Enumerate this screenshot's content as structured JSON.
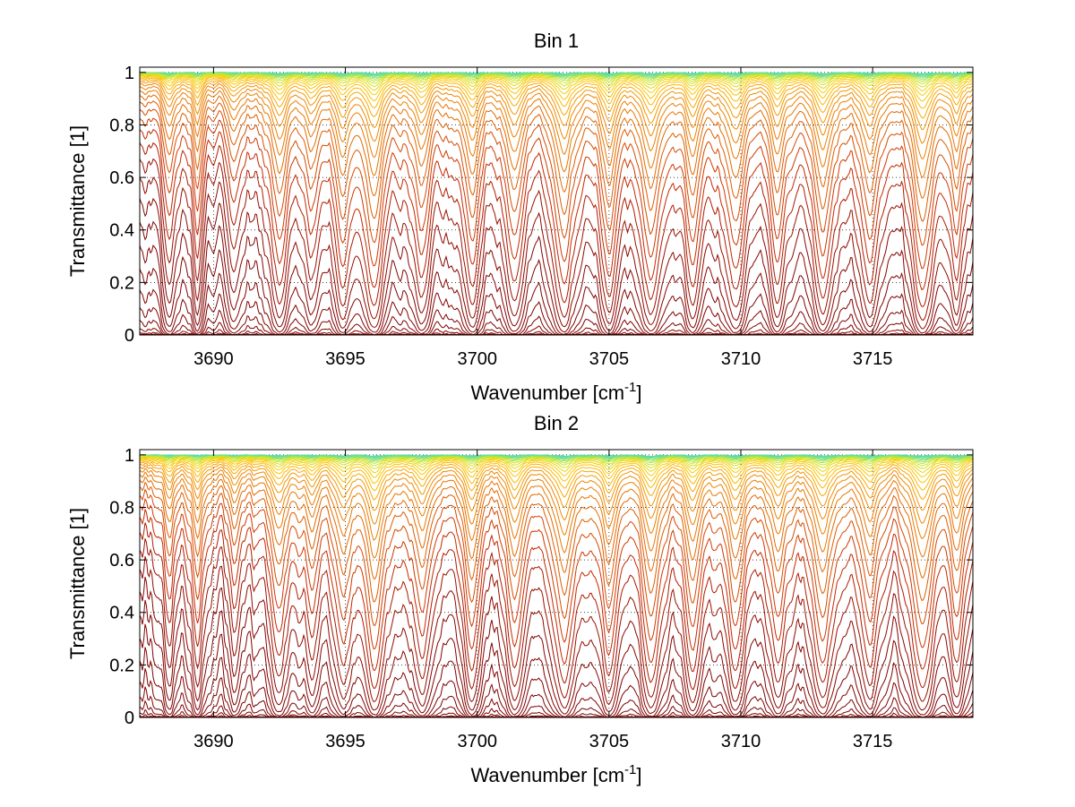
{
  "chart_data": [
    {
      "type": "line",
      "title": "Bin 1",
      "xlabel": "Wavenumber [cm-1]",
      "xlabel_base": "Wavenumber [cm",
      "xlabel_sup": "-1",
      "xlabel_close": "]",
      "ylabel": "Transmittance [1]",
      "xlim": [
        3687.2,
        3718.8
      ],
      "ylim": [
        0,
        1.02
      ],
      "xticks": [
        3690,
        3695,
        3700,
        3705,
        3710,
        3715
      ],
      "xtick_labels": [
        "3690",
        "3695",
        "3700",
        "3705",
        "3710",
        "3715"
      ],
      "yticks": [
        0,
        0.2,
        0.4,
        0.6,
        0.8,
        1
      ],
      "ytick_labels": [
        "0",
        "0.2",
        "0.4",
        "0.6",
        "0.8",
        "1"
      ],
      "grid": true,
      "grid_style": "dotted",
      "line_count": 48,
      "colormap": "autumn-to-jet (dark red at low transmittance, orange mid, yellow/green/cyan near 1)",
      "absorption_line_centers": [
        3688.3,
        3689.4,
        3690.8,
        3692.5,
        3693.7,
        3694.9,
        3696.1,
        3697.9,
        3699.8,
        3701.4,
        3703.3,
        3705.0,
        3706.6,
        3708.2,
        3709.8,
        3711.4,
        3713.1,
        3714.9,
        3716.9,
        3718.2
      ],
      "representative_series": [
        {
          "x": [
            3687.2,
            3690,
            3695,
            3696.1,
            3700,
            3703.3,
            3705,
            3710,
            3713.1,
            3716.9,
            3718.8
          ],
          "y": [
            0.99,
            0.99,
            0.99,
            0.96,
            0.99,
            0.97,
            0.98,
            0.99,
            0.98,
            0.96,
            0.99
          ]
        },
        {
          "x": [
            3687.2,
            3690,
            3695,
            3696.1,
            3700,
            3703.3,
            3705,
            3710,
            3713.1,
            3716.9,
            3718.8
          ],
          "y": [
            0.85,
            0.82,
            0.8,
            0.25,
            0.78,
            0.22,
            0.3,
            0.8,
            0.2,
            0.2,
            0.85
          ]
        },
        {
          "x": [
            3687.2,
            3690,
            3695,
            3696.1,
            3700,
            3703.3,
            3705,
            3710,
            3713.1,
            3716.9,
            3718.8
          ],
          "y": [
            0.4,
            0.35,
            0.45,
            0.18,
            0.5,
            0.18,
            0.2,
            0.5,
            0.18,
            0.18,
            0.55
          ]
        },
        {
          "x": [
            3687.2,
            3690,
            3695,
            3700,
            3705,
            3710,
            3715,
            3718.8
          ],
          "y": [
            0.17,
            0.15,
            0.15,
            0.14,
            0.14,
            0.15,
            0.13,
            0.14
          ]
        },
        {
          "x": [
            3687.2,
            3690,
            3695,
            3700,
            3705,
            3710,
            3715,
            3718.8
          ],
          "y": [
            0.01,
            0.01,
            0.01,
            0.01,
            0.01,
            0.01,
            0.01,
            0.01
          ]
        }
      ]
    },
    {
      "type": "line",
      "title": "Bin 2",
      "xlabel": "Wavenumber [cm-1]",
      "xlabel_base": "Wavenumber [cm",
      "xlabel_sup": "-1",
      "xlabel_close": "]",
      "ylabel": "Transmittance [1]",
      "xlim": [
        3687.2,
        3718.8
      ],
      "ylim": [
        0,
        1.02
      ],
      "xticks": [
        3690,
        3695,
        3700,
        3705,
        3710,
        3715
      ],
      "xtick_labels": [
        "3690",
        "3695",
        "3700",
        "3705",
        "3710",
        "3715"
      ],
      "yticks": [
        0,
        0.2,
        0.4,
        0.6,
        0.8,
        1
      ],
      "ytick_labels": [
        "0",
        "0.2",
        "0.4",
        "0.6",
        "0.8",
        "1"
      ],
      "grid": true,
      "grid_style": "dotted",
      "line_count": 48,
      "colormap": "autumn-to-jet (dark red at low transmittance, orange mid, yellow/green/cyan near 1)",
      "absorption_line_centers": [
        3688.3,
        3689.4,
        3690.8,
        3692.5,
        3693.7,
        3694.9,
        3696.1,
        3697.9,
        3699.8,
        3701.4,
        3703.3,
        3705.0,
        3706.6,
        3708.2,
        3709.8,
        3711.4,
        3713.1,
        3714.9,
        3716.9,
        3718.2
      ],
      "representative_series": [
        {
          "x": [
            3687.2,
            3690,
            3695,
            3696.1,
            3700,
            3703.3,
            3705,
            3710,
            3713.1,
            3716.9,
            3718.8
          ],
          "y": [
            0.99,
            0.99,
            0.99,
            0.96,
            0.99,
            0.97,
            0.98,
            0.99,
            0.98,
            0.96,
            0.99
          ]
        },
        {
          "x": [
            3687.2,
            3690,
            3695,
            3696.1,
            3700,
            3703.3,
            3705,
            3710,
            3713.1,
            3716.9,
            3718.8
          ],
          "y": [
            0.85,
            0.8,
            0.78,
            0.3,
            0.75,
            0.25,
            0.32,
            0.78,
            0.25,
            0.22,
            0.85
          ]
        },
        {
          "x": [
            3687.2,
            3690,
            3695,
            3696.1,
            3700,
            3703.3,
            3705,
            3710,
            3713.1,
            3716.9,
            3718.8
          ],
          "y": [
            0.4,
            0.35,
            0.42,
            0.22,
            0.45,
            0.2,
            0.22,
            0.45,
            0.2,
            0.2,
            0.5
          ]
        },
        {
          "x": [
            3687.2,
            3690,
            3695,
            3700,
            3705,
            3710,
            3715,
            3718.8
          ],
          "y": [
            0.2,
            0.19,
            0.19,
            0.18,
            0.18,
            0.19,
            0.17,
            0.18
          ]
        },
        {
          "x": [
            3687.2,
            3690,
            3695,
            3700,
            3705,
            3710,
            3715,
            3718.8
          ],
          "y": [
            0.01,
            0.01,
            0.01,
            0.01,
            0.01,
            0.01,
            0.01,
            0.01
          ]
        }
      ]
    }
  ]
}
